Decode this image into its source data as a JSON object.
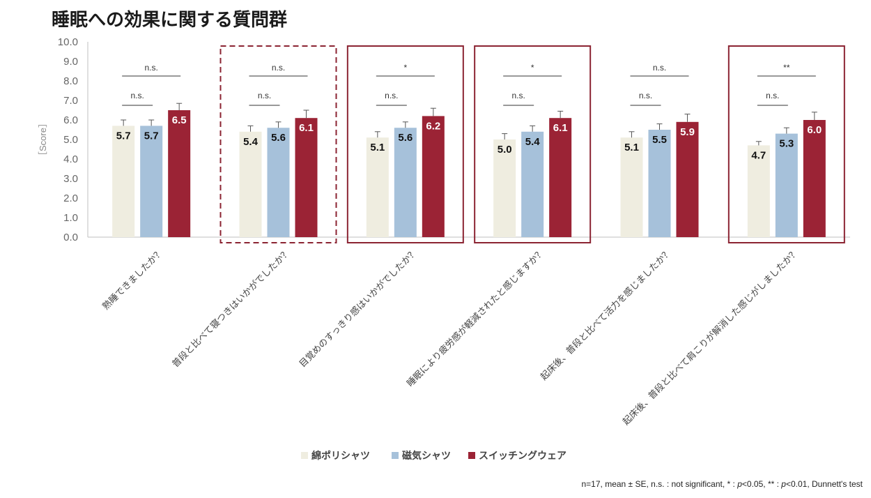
{
  "page": {
    "title": "睡眠への効果に関する質問群",
    "footnote": {
      "part1": "n=17, mean ± SE, n.s. : not significant, * : ",
      "p1": "p",
      "part2": "<0.05, ** : ",
      "p2": "p",
      "part3": "<0.01, Dunnett's test"
    }
  },
  "chart_data": {
    "type": "bar",
    "title": "睡眠への効果に関する質問群",
    "ylabel": "［Score］",
    "xlabel": "",
    "ylim": [
      0,
      10
    ],
    "yticks": [
      "0.0",
      "1.0",
      "2.0",
      "3.0",
      "4.0",
      "5.0",
      "6.0",
      "7.0",
      "8.0",
      "9.0",
      "10.0"
    ],
    "categories": [
      "熟睡できましたか？",
      "普段と比べて寝つきはいかがでしたか？",
      "目覚めのすっきり感はいかがでしたか？",
      "睡眠により疲労感が軽減されたと感じますか？",
      "起床後、普段と比べて活力を感じましたか？",
      "起床後、普段と比べて肩こりが解消した感じがしましたか？"
    ],
    "series": [
      {
        "name": "綿ポリシャツ",
        "color": "#efede0",
        "label_color": "#111111",
        "values": [
          5.7,
          5.4,
          5.1,
          5.0,
          5.1,
          4.7
        ],
        "se": [
          0.3,
          0.3,
          0.3,
          0.3,
          0.3,
          0.2
        ]
      },
      {
        "name": "磁気シャツ",
        "color": "#a6c1da",
        "label_color": "#111111",
        "values": [
          5.7,
          5.6,
          5.6,
          5.4,
          5.5,
          5.3
        ],
        "se": [
          0.3,
          0.3,
          0.3,
          0.3,
          0.3,
          0.3
        ]
      },
      {
        "name": "スイッチングウェア",
        "color": "#9b2335",
        "label_color": "#ffffff",
        "values": [
          6.5,
          6.1,
          6.2,
          6.1,
          5.9,
          6.0
        ],
        "se": [
          0.35,
          0.4,
          0.4,
          0.35,
          0.4,
          0.4
        ]
      }
    ],
    "value_labels": [
      [
        "5.7",
        "5.4",
        "5.1",
        "5.0",
        "5.1",
        "4.7"
      ],
      [
        "5.7",
        "5.6",
        "5.6",
        "5.4",
        "5.5",
        "5.3"
      ],
      [
        "6.5",
        "6.1",
        "6.2",
        "6.1",
        "5.9",
        "6.0"
      ]
    ],
    "significance": [
      {
        "top": "n.s.",
        "bottom": "n.s."
      },
      {
        "top": "n.s.",
        "bottom": "n.s."
      },
      {
        "top": "*",
        "bottom": "n.s."
      },
      {
        "top": "*",
        "bottom": "n.s."
      },
      {
        "top": "n.s.",
        "bottom": "n.s."
      },
      {
        "top": "**",
        "bottom": "n.s."
      }
    ],
    "highlight_boxes": [
      {
        "category": 1,
        "style": "dashed"
      },
      {
        "category": 2,
        "style": "solid"
      },
      {
        "category": 3,
        "style": "solid"
      },
      {
        "category": 5,
        "style": "solid"
      }
    ],
    "highlight_color": "#8b2332",
    "grid": false
  }
}
